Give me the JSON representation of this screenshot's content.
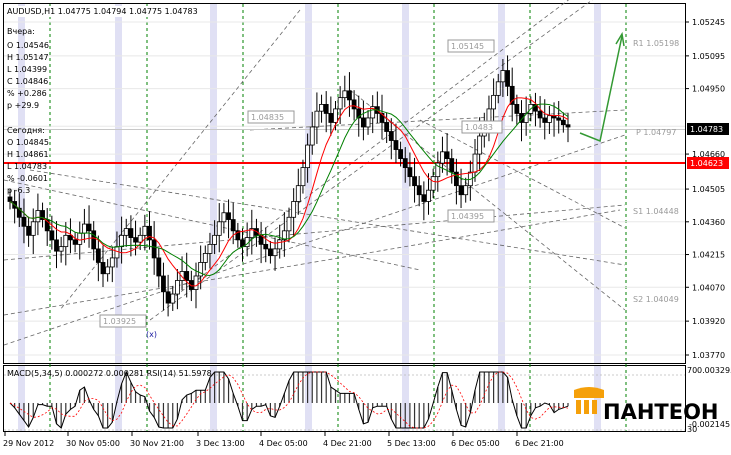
{
  "header": {
    "symbol_line": "AUDUSD,H1  1.04775 1.04794 1.04775 1.04783"
  },
  "info_yesterday": {
    "title": "Вчера:",
    "lines": [
      "O 1.04546",
      "H 1.05147",
      "L 1.04399",
      "C 1.04846",
      "% +0.286",
      "p +29.9"
    ]
  },
  "info_today": {
    "title": "Сегодня:",
    "lines": [
      "O 1.04845",
      "H 1.04861",
      "L 1.04783",
      "% -0.0601",
      "p -6.3"
    ]
  },
  "annotations": {
    "cross_marker": "(x)",
    "level_r1": "R1 1.05198",
    "level_p": "P 1.04797",
    "level_s1": "S1 1.04448",
    "level_s2": "S2 1.04049",
    "box_1": "1.04835",
    "box_2": "1.05145",
    "box_3": "1.04395",
    "box_4": "1.03925",
    "box_5": "1.0483",
    "current_price": "1.04783",
    "red_line_price": "1.04623"
  },
  "indicator": {
    "label": "MACD(5,34,5) 0.000272 0.000281  RSI(14) 51.5978",
    "scale_top": "70",
    "scale_top_value": "0.003295",
    "scale_bottom": "30",
    "scale_bottom_value": "-0.002145"
  },
  "logo": {
    "text": "ПАНТЕОН"
  },
  "colors": {
    "candle": "#000000",
    "ma_red": "#ff0000",
    "ma_green": "#008000",
    "grid": "#c0c0c0",
    "pivot_red_line": "#ff0000",
    "price_box": "#000000",
    "highlight_band": "#e0e0f4",
    "forecast_green": "#339933",
    "logo_orange": "#f5a00a"
  },
  "chart_data": {
    "type": "candlestick",
    "x_axis_labels": [
      "29 Nov 2012",
      "30 Nov 05:00",
      "30 Nov 21:00",
      "3 Dec 13:00",
      "4 Dec 05:00",
      "4 Dec 21:00",
      "5 Dec 13:00",
      "6 Dec 05:00",
      "6 Dec 21:00"
    ],
    "y_axis_labels": [
      "1.05245",
      "1.05095",
      "1.04950",
      "1.04783",
      "1.04660",
      "1.04623",
      "1.04505",
      "1.04360",
      "1.04215",
      "1.04070",
      "1.03920",
      "1.03770"
    ],
    "ylim": [
      1.0377,
      1.05245
    ],
    "pivot_levels": {
      "R1": 1.05198,
      "P": 1.04797,
      "S1": 1.04448,
      "S2": 1.04049
    },
    "horizontal_line": 1.04623,
    "last_price": 1.04783,
    "macd": {
      "params": "5,34,5",
      "main": 0.000272,
      "signal": 0.000281
    },
    "rsi": {
      "period": 14,
      "value": 51.5978,
      "levels": [
        70,
        30
      ]
    },
    "closes": [
      1.0445,
      1.0442,
      1.0438,
      1.0434,
      1.043,
      1.0436,
      1.0441,
      1.0437,
      1.0432,
      1.0428,
      1.0423,
      1.0425,
      1.043,
      1.0428,
      1.0426,
      1.0431,
      1.0435,
      1.0432,
      1.0424,
      1.0418,
      1.0413,
      1.0416,
      1.042,
      1.0425,
      1.043,
      1.0433,
      1.0429,
      1.0427,
      1.043,
      1.0434,
      1.0428,
      1.042,
      1.0412,
      1.0405,
      1.04,
      1.0404,
      1.041,
      1.0414,
      1.041,
      1.0406,
      1.0412,
      1.0418,
      1.0422,
      1.0426,
      1.043,
      1.0436,
      1.044,
      1.0437,
      1.0432,
      1.0428,
      1.0425,
      1.0429,
      1.0433,
      1.043,
      1.0426,
      1.0424,
      1.0421,
      1.0424,
      1.0428,
      1.0432,
      1.0438,
      1.0445,
      1.0452,
      1.046,
      1.047,
      1.0478,
      1.0485,
      1.0488,
      1.0484,
      1.048,
      1.0486,
      1.0491,
      1.0494,
      1.049,
      1.0486,
      1.0482,
      1.0478,
      1.0482,
      1.0487,
      1.0484,
      1.048,
      1.0476,
      1.0472,
      1.0468,
      1.0464,
      1.046,
      1.0456,
      1.0452,
      1.0448,
      1.0445,
      1.045,
      1.0456,
      1.0462,
      1.0467,
      1.0464,
      1.0458,
      1.0452,
      1.0448,
      1.0452,
      1.0458,
      1.0466,
      1.0474,
      1.048,
      1.0486,
      1.0492,
      1.0498,
      1.0503,
      1.0496,
      1.0488,
      1.0484,
      1.048,
      1.0484,
      1.0488,
      1.0485,
      1.0482,
      1.048,
      1.0483,
      1.0482,
      1.0481,
      1.0479,
      1.0478
    ]
  }
}
